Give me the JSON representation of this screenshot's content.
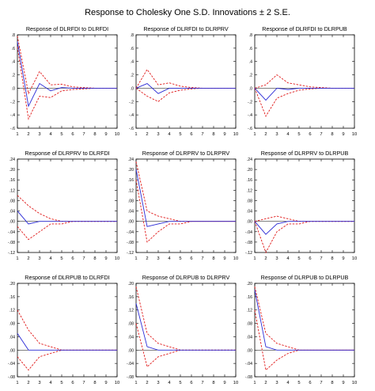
{
  "title": "Response to Cholesky One S.D. Innovations ± 2 S.E.",
  "chart_data": [
    {
      "type": "line",
      "title": "Response of DLRFDI to DLRFDI",
      "x": [
        1,
        2,
        3,
        4,
        5,
        6,
        7,
        8,
        9,
        10
      ],
      "xticks": [
        "1",
        "2",
        "3",
        "4",
        "5",
        "6",
        "7",
        "8",
        "9",
        "10"
      ],
      "ylim": [
        -0.6,
        0.8
      ],
      "yticks": [
        0.8,
        0.6,
        0.4,
        0.2,
        0.0,
        -0.2,
        -0.4,
        -0.6
      ],
      "yticklabels": [
        ".8",
        ".6",
        ".4",
        ".2",
        ".0",
        "-.2",
        "-.4",
        "-.6"
      ],
      "series": [
        {
          "values": [
            0.7,
            -0.27,
            0.07,
            -0.04,
            0.01,
            0.0,
            0.0,
            0.0,
            0.0,
            0.0
          ],
          "color": "#2b2bd6",
          "style": "solid"
        },
        {
          "values": [
            0.78,
            -0.08,
            0.25,
            0.05,
            0.06,
            0.02,
            0.01,
            0.0,
            0.0,
            0.0
          ],
          "color": "#e01818",
          "style": "dashed"
        },
        {
          "values": [
            0.62,
            -0.46,
            -0.12,
            -0.14,
            -0.04,
            -0.02,
            -0.01,
            0.0,
            0.0,
            0.0
          ],
          "color": "#e01818",
          "style": "dashed"
        }
      ]
    },
    {
      "type": "line",
      "title": "Response of DLRFDI to DLRPRV",
      "x": [
        1,
        2,
        3,
        4,
        5,
        6,
        7,
        8,
        9,
        10
      ],
      "xticks": [
        "1",
        "2",
        "3",
        "4",
        "5",
        "6",
        "7",
        "8",
        "9",
        "10"
      ],
      "ylim": [
        -0.6,
        0.8
      ],
      "yticks": [
        0.8,
        0.6,
        0.4,
        0.2,
        0.0,
        -0.2,
        -0.4,
        -0.6
      ],
      "yticklabels": [
        ".8",
        ".6",
        ".4",
        ".2",
        ".0",
        "-.2",
        "-.4",
        "-.6"
      ],
      "series": [
        {
          "values": [
            0.0,
            0.07,
            -0.08,
            0.0,
            0.0,
            0.0,
            0.0,
            0.0,
            0.0,
            0.0
          ],
          "color": "#2b2bd6",
          "style": "solid"
        },
        {
          "values": [
            0.0,
            0.28,
            0.05,
            0.08,
            0.03,
            0.01,
            0.0,
            0.0,
            0.0,
            0.0
          ],
          "color": "#e01818",
          "style": "dashed"
        },
        {
          "values": [
            0.0,
            -0.12,
            -0.2,
            -0.07,
            -0.03,
            -0.01,
            0.0,
            0.0,
            0.0,
            0.0
          ],
          "color": "#e01818",
          "style": "dashed"
        }
      ]
    },
    {
      "type": "line",
      "title": "Response of DLRFDI to DLRPUB",
      "x": [
        1,
        2,
        3,
        4,
        5,
        6,
        7,
        8,
        9,
        10
      ],
      "xticks": [
        "1",
        "2",
        "3",
        "4",
        "5",
        "6",
        "7",
        "8",
        "9",
        "10"
      ],
      "ylim": [
        -0.6,
        0.8
      ],
      "yticks": [
        0.8,
        0.6,
        0.4,
        0.2,
        0.0,
        -0.2,
        -0.4,
        -0.6
      ],
      "yticklabels": [
        ".8",
        ".6",
        ".4",
        ".2",
        ".0",
        "-.2",
        "-.4",
        "-.6"
      ],
      "series": [
        {
          "values": [
            0.0,
            -0.18,
            0.0,
            -0.02,
            0.0,
            0.0,
            0.0,
            0.0,
            0.0,
            0.0
          ],
          "color": "#2b2bd6",
          "style": "solid"
        },
        {
          "values": [
            0.0,
            0.05,
            0.2,
            0.08,
            0.05,
            0.02,
            0.01,
            0.0,
            0.0,
            0.0
          ],
          "color": "#e01818",
          "style": "dashed"
        },
        {
          "values": [
            0.0,
            -0.42,
            -0.15,
            -0.08,
            -0.03,
            -0.01,
            0.0,
            0.0,
            0.0,
            0.0
          ],
          "color": "#e01818",
          "style": "dashed"
        }
      ]
    },
    {
      "type": "line",
      "title": "Response of DLRPRV to DLRFDI",
      "x": [
        1,
        2,
        3,
        4,
        5,
        6,
        7,
        8,
        9,
        10
      ],
      "xticks": [
        "1",
        "2",
        "3",
        "4",
        "5",
        "6",
        "7",
        "8",
        "9",
        "10"
      ],
      "ylim": [
        -0.12,
        0.24
      ],
      "yticks": [
        0.24,
        0.2,
        0.16,
        0.12,
        0.08,
        0.04,
        0.0,
        -0.04,
        -0.08,
        -0.12
      ],
      "yticklabels": [
        ".24",
        ".20",
        ".16",
        ".12",
        ".08",
        ".04",
        ".00",
        "-.04",
        "-.08",
        "-.12"
      ],
      "series": [
        {
          "values": [
            0.04,
            -0.01,
            0.0,
            0.0,
            0.0,
            0.0,
            0.0,
            0.0,
            0.0,
            0.0
          ],
          "color": "#2b2bd6",
          "style": "solid"
        },
        {
          "values": [
            0.1,
            0.06,
            0.03,
            0.01,
            0.0,
            0.0,
            0.0,
            0.0,
            0.0,
            0.0
          ],
          "color": "#e01818",
          "style": "dashed"
        },
        {
          "values": [
            -0.02,
            -0.07,
            -0.04,
            -0.01,
            -0.01,
            0.0,
            0.0,
            0.0,
            0.0,
            0.0
          ],
          "color": "#e01818",
          "style": "dashed"
        }
      ]
    },
    {
      "type": "line",
      "title": "Response of DLRPRV to DLRPRV",
      "x": [
        1,
        2,
        3,
        4,
        5,
        6,
        7,
        8,
        9,
        10
      ],
      "xticks": [
        "1",
        "2",
        "3",
        "4",
        "5",
        "6",
        "7",
        "8",
        "9",
        "10"
      ],
      "ylim": [
        -0.12,
        0.24
      ],
      "yticks": [
        0.24,
        0.2,
        0.16,
        0.12,
        0.08,
        0.04,
        0.0,
        -0.04,
        -0.08,
        -0.12
      ],
      "yticklabels": [
        ".24",
        ".20",
        ".16",
        ".12",
        ".08",
        ".04",
        ".00",
        "-.04",
        "-.08",
        "-.12"
      ],
      "series": [
        {
          "values": [
            0.2,
            -0.02,
            -0.01,
            0.0,
            0.0,
            0.0,
            0.0,
            0.0,
            0.0,
            0.0
          ],
          "color": "#2b2bd6",
          "style": "solid"
        },
        {
          "values": [
            0.23,
            0.04,
            0.02,
            0.01,
            0.0,
            0.0,
            0.0,
            0.0,
            0.0,
            0.0
          ],
          "color": "#e01818",
          "style": "dashed"
        },
        {
          "values": [
            0.16,
            -0.08,
            -0.04,
            -0.01,
            -0.01,
            0.0,
            0.0,
            0.0,
            0.0,
            0.0
          ],
          "color": "#e01818",
          "style": "dashed"
        }
      ]
    },
    {
      "type": "line",
      "title": "Response of DLRPRV to DLRPUB",
      "x": [
        1,
        2,
        3,
        4,
        5,
        6,
        7,
        8,
        9,
        10
      ],
      "xticks": [
        "1",
        "2",
        "3",
        "4",
        "5",
        "6",
        "7",
        "8",
        "9",
        "10"
      ],
      "ylim": [
        -0.12,
        0.24
      ],
      "yticks": [
        0.24,
        0.2,
        0.16,
        0.12,
        0.08,
        0.04,
        0.0,
        -0.04,
        -0.08,
        -0.12
      ],
      "yticklabels": [
        ".24",
        ".20",
        ".16",
        ".12",
        ".08",
        ".04",
        ".00",
        "-.04",
        "-.08",
        "-.12"
      ],
      "series": [
        {
          "values": [
            0.0,
            -0.05,
            -0.01,
            0.0,
            0.0,
            0.0,
            0.0,
            0.0,
            0.0,
            0.0
          ],
          "color": "#2b2bd6",
          "style": "solid"
        },
        {
          "values": [
            0.0,
            0.01,
            0.02,
            0.01,
            0.0,
            0.0,
            0.0,
            0.0,
            0.0,
            0.0
          ],
          "color": "#e01818",
          "style": "dashed"
        },
        {
          "values": [
            0.0,
            -0.12,
            -0.04,
            -0.01,
            -0.01,
            0.0,
            0.0,
            0.0,
            0.0,
            0.0
          ],
          "color": "#e01818",
          "style": "dashed"
        }
      ]
    },
    {
      "type": "line",
      "title": "Response of DLRPUB to DLRFDI",
      "x": [
        1,
        2,
        3,
        4,
        5,
        6,
        7,
        8,
        9,
        10
      ],
      "xticks": [
        "1",
        "2",
        "3",
        "4",
        "5",
        "6",
        "7",
        "8",
        "9",
        "10"
      ],
      "ylim": [
        -0.08,
        0.2
      ],
      "yticks": [
        0.2,
        0.16,
        0.12,
        0.08,
        0.04,
        0.0,
        -0.04,
        -0.08
      ],
      "yticklabels": [
        ".20",
        ".16",
        ".12",
        ".08",
        ".04",
        ".00",
        "-.04",
        "-.08"
      ],
      "series": [
        {
          "values": [
            0.05,
            0.0,
            0.0,
            0.0,
            0.0,
            0.0,
            0.0,
            0.0,
            0.0,
            0.0
          ],
          "color": "#2b2bd6",
          "style": "solid"
        },
        {
          "values": [
            0.12,
            0.06,
            0.02,
            0.01,
            0.0,
            0.0,
            0.0,
            0.0,
            0.0,
            0.0
          ],
          "color": "#e01818",
          "style": "dashed"
        },
        {
          "values": [
            -0.02,
            -0.06,
            -0.02,
            -0.01,
            0.0,
            0.0,
            0.0,
            0.0,
            0.0,
            0.0
          ],
          "color": "#e01818",
          "style": "dashed"
        }
      ]
    },
    {
      "type": "line",
      "title": "Response of DLRPUB to DLRPRV",
      "x": [
        1,
        2,
        3,
        4,
        5,
        6,
        7,
        8,
        9,
        10
      ],
      "xticks": [
        "1",
        "2",
        "3",
        "4",
        "5",
        "6",
        "7",
        "8",
        "9",
        "10"
      ],
      "ylim": [
        -0.08,
        0.2
      ],
      "yticks": [
        0.2,
        0.16,
        0.12,
        0.08,
        0.04,
        0.0,
        -0.04,
        -0.08
      ],
      "yticklabels": [
        ".20",
        ".16",
        ".12",
        ".08",
        ".04",
        ".00",
        "-.04",
        "-.08"
      ],
      "series": [
        {
          "values": [
            0.14,
            0.01,
            0.0,
            0.0,
            0.0,
            0.0,
            0.0,
            0.0,
            0.0,
            0.0
          ],
          "color": "#2b2bd6",
          "style": "solid"
        },
        {
          "values": [
            0.19,
            0.05,
            0.02,
            0.01,
            0.0,
            0.0,
            0.0,
            0.0,
            0.0,
            0.0
          ],
          "color": "#e01818",
          "style": "dashed"
        },
        {
          "values": [
            0.08,
            -0.05,
            -0.02,
            -0.01,
            0.0,
            0.0,
            0.0,
            0.0,
            0.0,
            0.0
          ],
          "color": "#e01818",
          "style": "dashed"
        }
      ]
    },
    {
      "type": "line",
      "title": "Response of DLRPUB to DLRPUB",
      "x": [
        1,
        2,
        3,
        4,
        5,
        6,
        7,
        8,
        9,
        10
      ],
      "xticks": [
        "1",
        "2",
        "3",
        "4",
        "5",
        "6",
        "7",
        "8",
        "9",
        "10"
      ],
      "ylim": [
        -0.08,
        0.2
      ],
      "yticks": [
        0.2,
        0.16,
        0.12,
        0.08,
        0.04,
        0.0,
        -0.04,
        -0.08
      ],
      "yticklabels": [
        ".20",
        ".16",
        ".12",
        ".08",
        ".04",
        ".00",
        "-.04",
        "-.08"
      ],
      "series": [
        {
          "values": [
            0.18,
            0.01,
            0.0,
            0.0,
            0.0,
            0.0,
            0.0,
            0.0,
            0.0,
            0.0
          ],
          "color": "#2b2bd6",
          "style": "solid"
        },
        {
          "values": [
            0.19,
            0.05,
            0.02,
            0.01,
            0.0,
            0.0,
            0.0,
            0.0,
            0.0,
            0.0
          ],
          "color": "#e01818",
          "style": "dashed"
        },
        {
          "values": [
            0.12,
            -0.06,
            -0.03,
            -0.01,
            0.0,
            0.0,
            0.0,
            0.0,
            0.0,
            0.0
          ],
          "color": "#e01818",
          "style": "dashed"
        }
      ]
    }
  ]
}
